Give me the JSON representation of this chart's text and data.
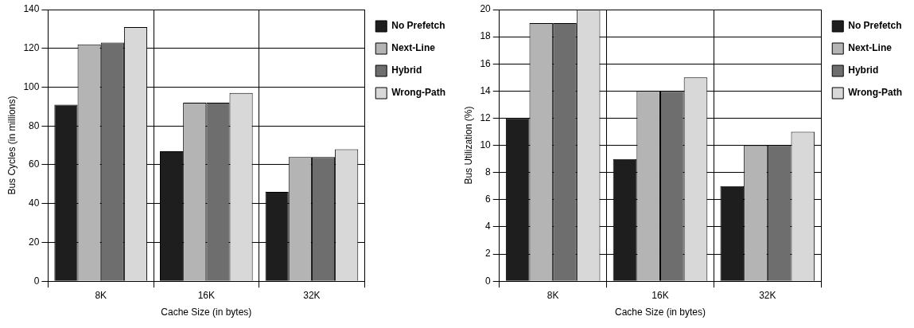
{
  "chart_data": [
    {
      "type": "bar",
      "xlabel": "Cache Size (in bytes)",
      "ylabel": "Bus Cycles (in millions)",
      "categories": [
        "8K",
        "16K",
        "32K"
      ],
      "series": [
        {
          "name": "No Prefetch",
          "color": "#1e1e1e",
          "values": [
            91,
            67,
            46
          ]
        },
        {
          "name": "Next-Line",
          "color": "#b4b4b4",
          "values": [
            122,
            92,
            64
          ]
        },
        {
          "name": "Hybrid",
          "color": "#6e6e6e",
          "values": [
            123,
            92,
            64
          ]
        },
        {
          "name": "Wrong-Path",
          "color": "#d8d8d8",
          "values": [
            131,
            97,
            68
          ]
        }
      ],
      "ylim": [
        0,
        140
      ],
      "yticks": [
        0,
        20,
        40,
        60,
        80,
        100,
        120,
        140
      ],
      "grid": true,
      "legend": "right"
    },
    {
      "type": "bar",
      "xlabel": "Cache Size (in bytes)",
      "ylabel": "Bus Utilization (%)",
      "categories": [
        "8K",
        "16K",
        "32K"
      ],
      "series": [
        {
          "name": "No Prefetch",
          "color": "#1e1e1e",
          "values": [
            12,
            9,
            7
          ]
        },
        {
          "name": "Next-Line",
          "color": "#b4b4b4",
          "values": [
            19,
            14,
            10
          ]
        },
        {
          "name": "Hybrid",
          "color": "#6e6e6e",
          "values": [
            19,
            14,
            10
          ]
        },
        {
          "name": "Wrong-Path",
          "color": "#d8d8d8",
          "values": [
            20,
            15,
            11
          ]
        }
      ],
      "ylim": [
        0,
        20
      ],
      "yticks": [
        0,
        2,
        4,
        6,
        8,
        10,
        12,
        14,
        16,
        18,
        20
      ],
      "grid": true,
      "legend": "right"
    }
  ]
}
